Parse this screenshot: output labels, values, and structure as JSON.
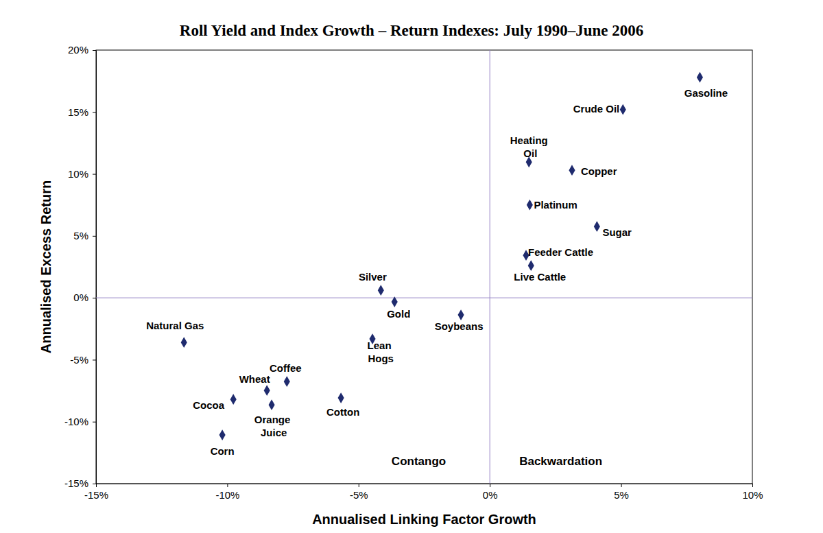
{
  "chart_data": {
    "type": "scatter",
    "title": "Roll Yield and Index Growth – Return Indexes: July 1990–June 2006",
    "x_label": "Annualised Linking Factor Growth",
    "y_label": "Annualised Excess Return",
    "point_labels": [
      "Gasoline",
      "Crude Oil",
      "Heating Oil",
      "Copper",
      "Platinum",
      "Sugar",
      "Feeder Cattle",
      "Live Cattle",
      "Silver",
      "Gold",
      "Soybeans",
      "Lean Hogs",
      "Natural Gas",
      "Coffee",
      "Wheat",
      "Cocoa",
      "Orange Juice",
      "Cotton",
      "Corn"
    ],
    "x": [
      8.0,
      5.07,
      1.49,
      3.13,
      1.52,
      4.08,
      1.38,
      1.57,
      -4.15,
      -3.63,
      -1.1,
      -4.47,
      -11.65,
      -7.73,
      -8.49,
      -9.77,
      -8.31,
      -5.67,
      -10.19
    ],
    "values": [
      17.8,
      15.2,
      10.96,
      10.3,
      7.5,
      5.76,
      3.43,
      2.6,
      0.61,
      -0.33,
      -1.38,
      -3.32,
      -3.6,
      -6.76,
      -7.48,
      -8.2,
      -8.64,
      -8.08,
      -11.07
    ],
    "xlim": [
      -15,
      10
    ],
    "ylim": [
      -15,
      20
    ],
    "xticks": [
      {
        "value": -15,
        "label": "-15%"
      },
      {
        "value": -10,
        "label": "-10%"
      },
      {
        "value": -5,
        "label": "-5%"
      },
      {
        "value": 0,
        "label": "0%"
      },
      {
        "value": 5,
        "label": "5%"
      },
      {
        "value": 10,
        "label": "10%"
      }
    ],
    "yticks": [
      {
        "value": -15,
        "label": "-15%"
      },
      {
        "value": -10,
        "label": "-10%"
      },
      {
        "value": -5,
        "label": "-5%"
      },
      {
        "value": 0,
        "label": "0%"
      },
      {
        "value": 5,
        "label": "5%"
      },
      {
        "value": 10,
        "label": "10%"
      },
      {
        "value": 15,
        "label": "15%"
      },
      {
        "value": 20,
        "label": "20%"
      }
    ],
    "zero_lines": {
      "x": 0,
      "y": 0
    },
    "annotations": [
      "Contango",
      "Backwardation"
    ],
    "color": "#1f2b6e",
    "marker": "diamond",
    "grid": false
  }
}
